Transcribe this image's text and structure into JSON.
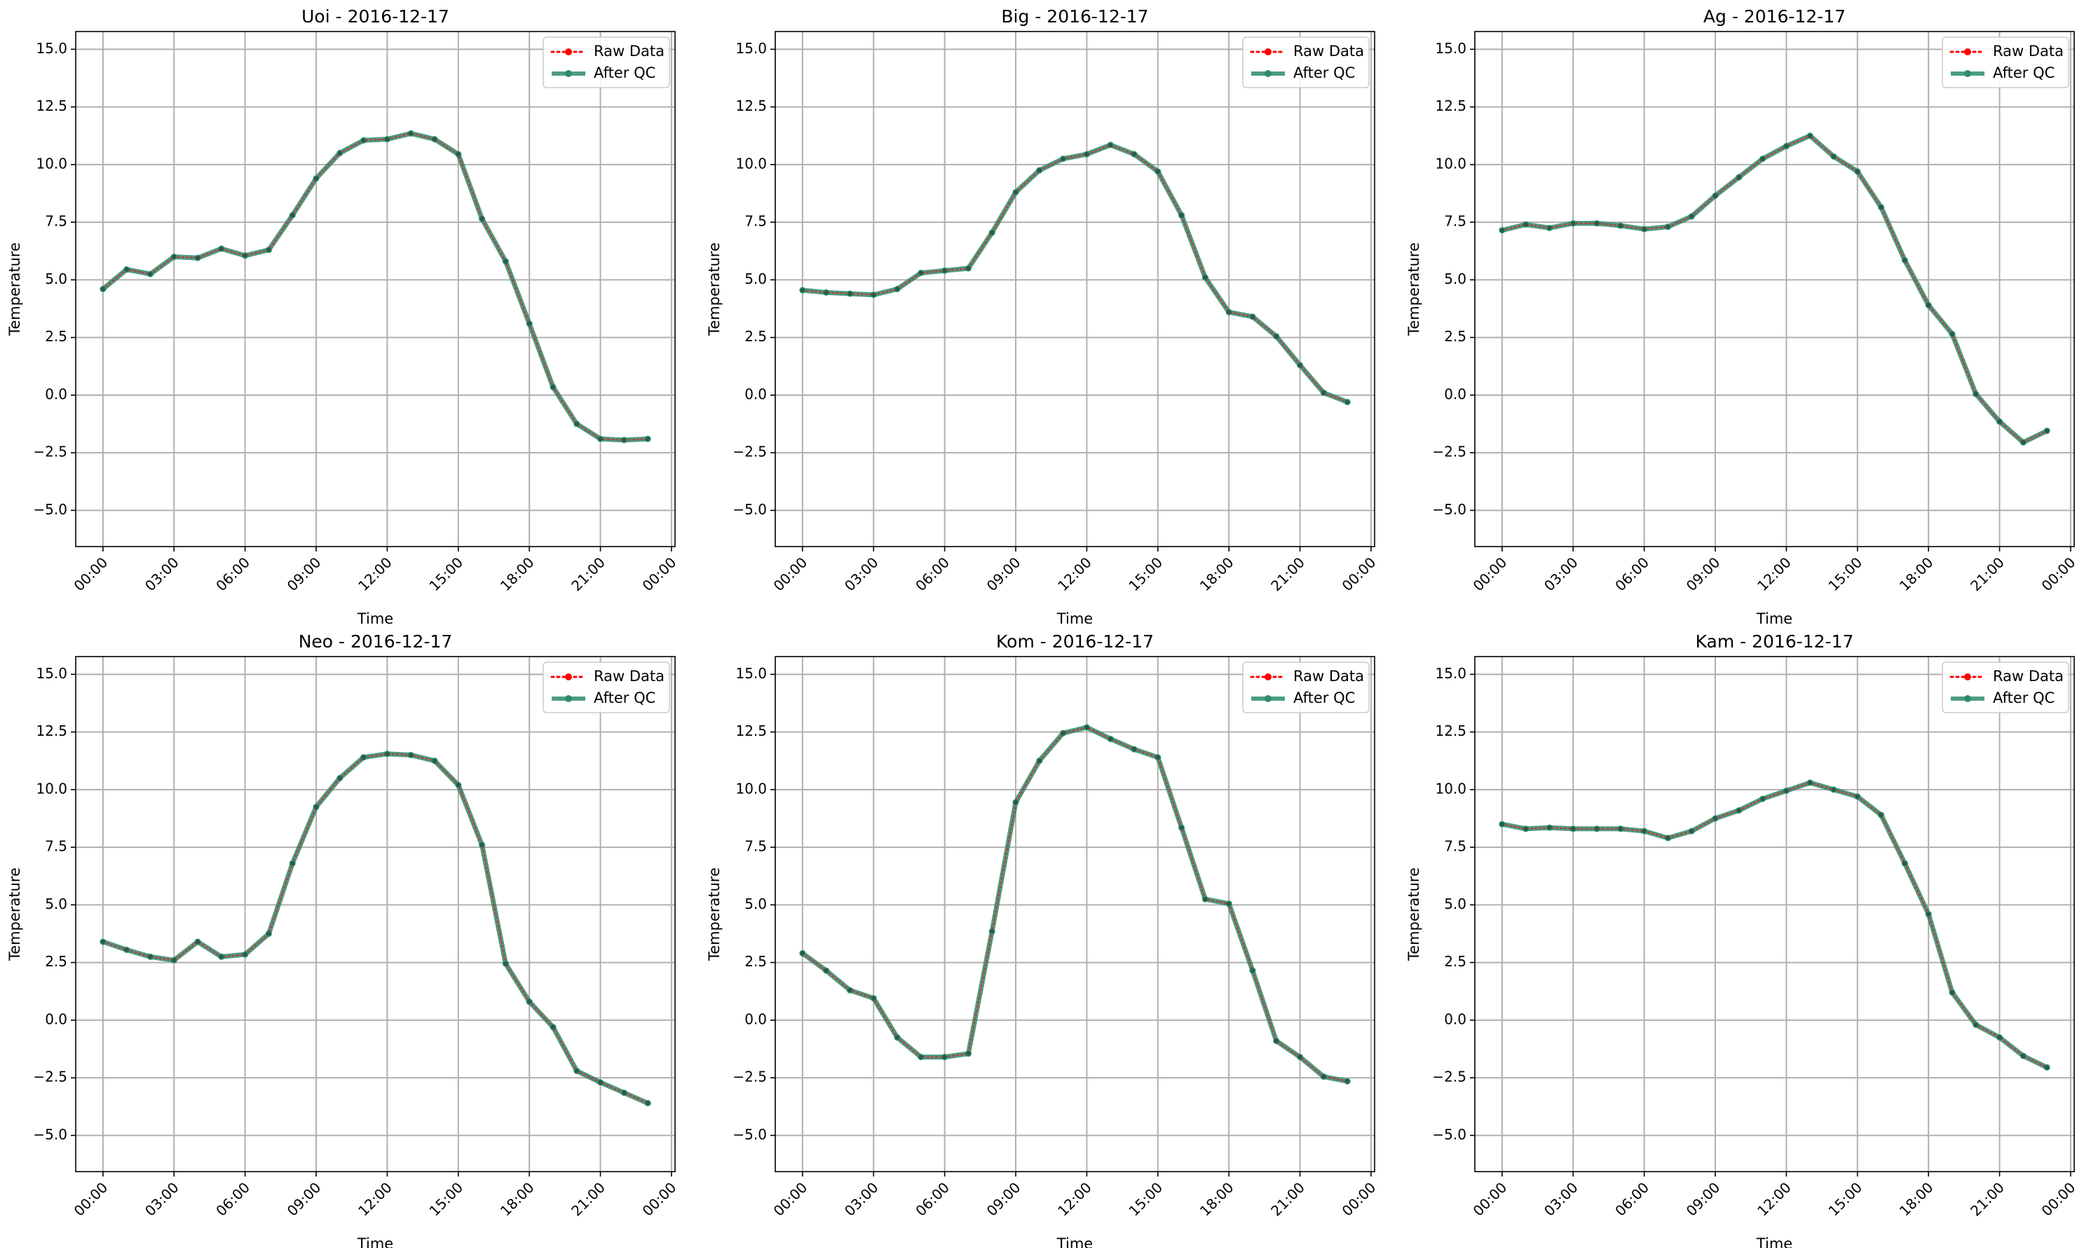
{
  "figure": {
    "background": "#ffffff"
  },
  "style": {
    "raw_color": "#ff0000",
    "qc_color": "#2e8b6e",
    "grid_color": "#b0b0b0"
  },
  "chart_data": [
    {
      "type": "line",
      "title": "Uoi - 2016-12-17",
      "xlabel": "Time",
      "ylabel": "Temperature",
      "xlim": [
        -1.15,
        24.15
      ],
      "ylim": [
        -6.57,
        15.77
      ],
      "x_ticks": [
        "00:00",
        "03:00",
        "06:00",
        "09:00",
        "12:00",
        "15:00",
        "18:00",
        "21:00",
        "00:00"
      ],
      "y_ticks": [
        "−5.0",
        "−2.5",
        "0.0",
        "2.5",
        "5.0",
        "7.5",
        "10.0",
        "12.5",
        "15.0"
      ],
      "grid": true,
      "legend_position": "top-right",
      "x": [
        0,
        1,
        2,
        3,
        4,
        5,
        6,
        7,
        8,
        9,
        10,
        11,
        12,
        13,
        14,
        15,
        16,
        17,
        18,
        19,
        20,
        21,
        22,
        23
      ],
      "series": [
        {
          "name": "Raw Data",
          "values": [
            4.6,
            5.45,
            5.25,
            6.0,
            5.95,
            6.35,
            6.05,
            6.3,
            7.8,
            9.4,
            10.5,
            11.05,
            11.1,
            11.35,
            11.1,
            10.45,
            7.65,
            5.8,
            3.1,
            0.35,
            -1.25,
            -1.9,
            -1.95,
            -1.9
          ]
        },
        {
          "name": "After QC",
          "values": [
            4.6,
            5.45,
            5.25,
            6.0,
            5.95,
            6.35,
            6.05,
            6.3,
            7.8,
            9.4,
            10.5,
            11.05,
            11.1,
            11.35,
            11.1,
            10.45,
            7.65,
            5.8,
            3.1,
            0.35,
            -1.25,
            -1.9,
            -1.95,
            -1.9
          ]
        }
      ]
    },
    {
      "type": "line",
      "title": "Big - 2016-12-17",
      "xlabel": "Time",
      "ylabel": "Temperature",
      "xlim": [
        -1.15,
        24.15
      ],
      "ylim": [
        -6.57,
        15.77
      ],
      "x_ticks": [
        "00:00",
        "03:00",
        "06:00",
        "09:00",
        "12:00",
        "15:00",
        "18:00",
        "21:00",
        "00:00"
      ],
      "y_ticks": [
        "−5.0",
        "−2.5",
        "0.0",
        "2.5",
        "5.0",
        "7.5",
        "10.0",
        "12.5",
        "15.0"
      ],
      "grid": true,
      "legend_position": "top-right",
      "x": [
        0,
        1,
        2,
        3,
        4,
        5,
        6,
        7,
        8,
        9,
        10,
        11,
        12,
        13,
        14,
        15,
        16,
        17,
        18,
        19,
        20,
        21,
        22,
        23
      ],
      "series": [
        {
          "name": "Raw Data",
          "values": [
            4.55,
            4.45,
            4.4,
            4.35,
            4.6,
            5.3,
            5.4,
            5.5,
            7.05,
            8.8,
            9.75,
            10.25,
            10.45,
            10.85,
            10.45,
            9.7,
            7.8,
            5.1,
            3.6,
            3.4,
            2.55,
            1.3,
            0.1,
            -0.3
          ]
        },
        {
          "name": "After QC",
          "values": [
            4.55,
            4.45,
            4.4,
            4.35,
            4.6,
            5.3,
            5.4,
            5.5,
            7.05,
            8.8,
            9.75,
            10.25,
            10.45,
            10.85,
            10.45,
            9.7,
            7.8,
            5.1,
            3.6,
            3.4,
            2.55,
            1.3,
            0.1,
            -0.3
          ]
        }
      ]
    },
    {
      "type": "line",
      "title": "Ag - 2016-12-17",
      "xlabel": "Time",
      "ylabel": "Temperature",
      "xlim": [
        -1.15,
        24.15
      ],
      "ylim": [
        -6.57,
        15.77
      ],
      "x_ticks": [
        "00:00",
        "03:00",
        "06:00",
        "09:00",
        "12:00",
        "15:00",
        "18:00",
        "21:00",
        "00:00"
      ],
      "y_ticks": [
        "−5.0",
        "−2.5",
        "0.0",
        "2.5",
        "5.0",
        "7.5",
        "10.0",
        "12.5",
        "15.0"
      ],
      "grid": true,
      "legend_position": "top-right",
      "x": [
        0,
        1,
        2,
        3,
        4,
        5,
        6,
        7,
        8,
        9,
        10,
        11,
        12,
        13,
        14,
        15,
        16,
        17,
        18,
        19,
        20,
        21,
        22,
        23
      ],
      "series": [
        {
          "name": "Raw Data",
          "values": [
            7.15,
            7.4,
            7.25,
            7.45,
            7.45,
            7.35,
            7.2,
            7.3,
            7.75,
            8.65,
            9.45,
            10.25,
            10.8,
            11.25,
            10.35,
            9.7,
            8.15,
            5.85,
            3.9,
            2.65,
            0.05,
            -1.15,
            -2.05,
            -1.55
          ]
        },
        {
          "name": "After QC",
          "values": [
            7.15,
            7.4,
            7.25,
            7.45,
            7.45,
            7.35,
            7.2,
            7.3,
            7.75,
            8.65,
            9.45,
            10.25,
            10.8,
            11.25,
            10.35,
            9.7,
            8.15,
            5.85,
            3.9,
            2.65,
            0.05,
            -1.15,
            -2.05,
            -1.55
          ]
        }
      ]
    },
    {
      "type": "line",
      "title": "Neo - 2016-12-17",
      "xlabel": "Time",
      "ylabel": "Temperature",
      "xlim": [
        -1.15,
        24.15
      ],
      "ylim": [
        -6.57,
        15.77
      ],
      "x_ticks": [
        "00:00",
        "03:00",
        "06:00",
        "09:00",
        "12:00",
        "15:00",
        "18:00",
        "21:00",
        "00:00"
      ],
      "y_ticks": [
        "−5.0",
        "−2.5",
        "0.0",
        "2.5",
        "5.0",
        "7.5",
        "10.0",
        "12.5",
        "15.0"
      ],
      "grid": true,
      "legend_position": "top-right",
      "x": [
        0,
        1,
        2,
        3,
        4,
        5,
        6,
        7,
        8,
        9,
        10,
        11,
        12,
        13,
        14,
        15,
        16,
        17,
        18,
        19,
        20,
        21,
        22,
        23
      ],
      "series": [
        {
          "name": "Raw Data",
          "values": [
            3.4,
            3.05,
            2.75,
            2.6,
            3.4,
            2.75,
            2.85,
            3.75,
            6.8,
            9.25,
            10.5,
            11.4,
            11.55,
            11.5,
            11.25,
            10.2,
            7.6,
            2.45,
            0.8,
            -0.3,
            -2.2,
            -2.7,
            -3.15,
            -3.6
          ]
        },
        {
          "name": "After QC",
          "values": [
            3.4,
            3.05,
            2.75,
            2.6,
            3.4,
            2.75,
            2.85,
            3.75,
            6.8,
            9.25,
            10.5,
            11.4,
            11.55,
            11.5,
            11.25,
            10.2,
            7.6,
            2.45,
            0.8,
            -0.3,
            -2.2,
            -2.7,
            -3.15,
            -3.6
          ]
        }
      ]
    },
    {
      "type": "line",
      "title": "Kom - 2016-12-17",
      "xlabel": "Time",
      "ylabel": "Temperature",
      "xlim": [
        -1.15,
        24.15
      ],
      "ylim": [
        -6.57,
        15.77
      ],
      "x_ticks": [
        "00:00",
        "03:00",
        "06:00",
        "09:00",
        "12:00",
        "15:00",
        "18:00",
        "21:00",
        "00:00"
      ],
      "y_ticks": [
        "−5.0",
        "−2.5",
        "0.0",
        "2.5",
        "5.0",
        "7.5",
        "10.0",
        "12.5",
        "15.0"
      ],
      "grid": true,
      "legend_position": "top-right",
      "x": [
        0,
        1,
        2,
        3,
        4,
        5,
        6,
        7,
        8,
        9,
        10,
        11,
        12,
        13,
        14,
        15,
        16,
        17,
        18,
        19,
        20,
        21,
        22,
        23
      ],
      "series": [
        {
          "name": "Raw Data",
          "values": [
            2.9,
            2.15,
            1.3,
            0.95,
            -0.75,
            -1.6,
            -1.6,
            -1.45,
            3.85,
            9.45,
            11.25,
            12.45,
            12.7,
            12.2,
            11.75,
            11.4,
            8.35,
            5.25,
            5.05,
            2.15,
            -0.9,
            -1.6,
            -2.45,
            -2.65
          ]
        },
        {
          "name": "After QC",
          "values": [
            2.9,
            2.15,
            1.3,
            0.95,
            -0.75,
            -1.6,
            -1.6,
            -1.45,
            3.85,
            9.45,
            11.25,
            12.45,
            12.7,
            12.2,
            11.75,
            11.4,
            8.35,
            5.25,
            5.05,
            2.15,
            -0.9,
            -1.6,
            -2.45,
            -2.65
          ]
        }
      ]
    },
    {
      "type": "line",
      "title": "Kam - 2016-12-17",
      "xlabel": "Time",
      "ylabel": "Temperature",
      "xlim": [
        -1.15,
        24.15
      ],
      "ylim": [
        -6.57,
        15.77
      ],
      "x_ticks": [
        "00:00",
        "03:00",
        "06:00",
        "09:00",
        "12:00",
        "15:00",
        "18:00",
        "21:00",
        "00:00"
      ],
      "y_ticks": [
        "−5.0",
        "−2.5",
        "0.0",
        "2.5",
        "5.0",
        "7.5",
        "10.0",
        "12.5",
        "15.0"
      ],
      "grid": true,
      "legend_position": "top-right",
      "x": [
        0,
        1,
        2,
        3,
        4,
        5,
        6,
        7,
        8,
        9,
        10,
        11,
        12,
        13,
        14,
        15,
        16,
        17,
        18,
        19,
        20,
        21,
        22,
        23
      ],
      "series": [
        {
          "name": "Raw Data",
          "values": [
            8.5,
            8.3,
            8.35,
            8.3,
            8.3,
            8.3,
            8.2,
            7.9,
            8.2,
            8.75,
            9.1,
            9.6,
            9.95,
            10.3,
            10.0,
            9.7,
            8.9,
            6.8,
            4.6,
            1.2,
            -0.2,
            -0.75,
            -1.55,
            -2.05
          ]
        },
        {
          "name": "After QC",
          "values": [
            8.5,
            8.3,
            8.35,
            8.3,
            8.3,
            8.3,
            8.2,
            7.9,
            8.2,
            8.75,
            9.1,
            9.6,
            9.95,
            10.3,
            10.0,
            9.7,
            8.9,
            6.8,
            4.6,
            1.2,
            -0.2,
            -0.75,
            -1.55,
            -2.05
          ]
        }
      ]
    }
  ]
}
